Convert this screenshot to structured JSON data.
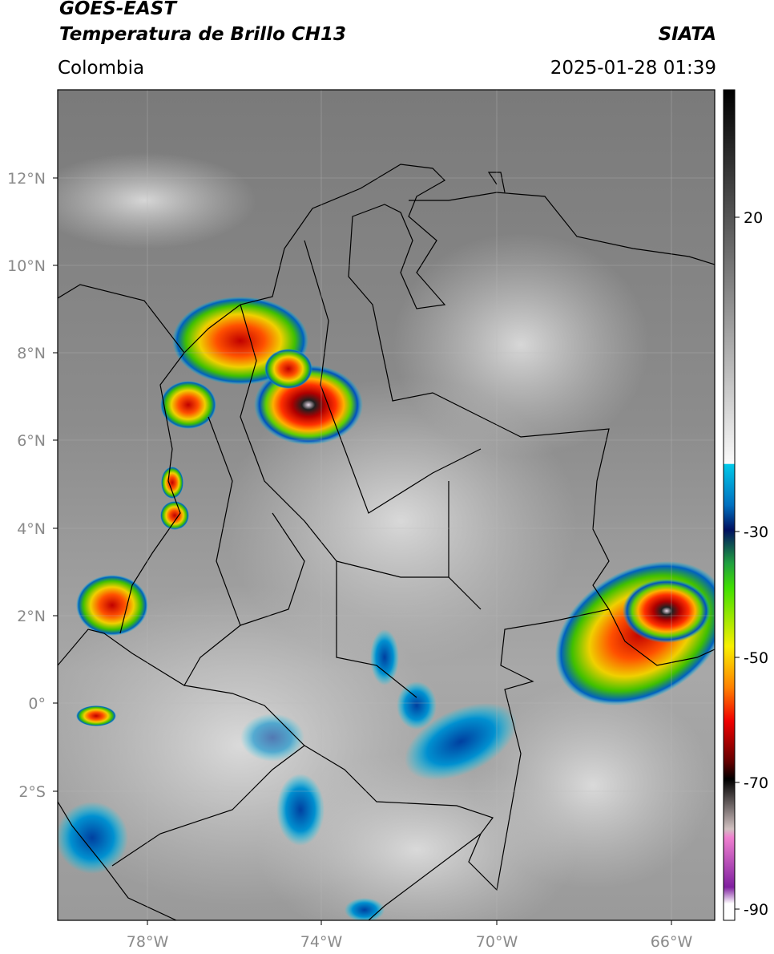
{
  "header": {
    "title_lines": [
      "GOES-EAST",
      "Temperatura de Brillo CH13"
    ],
    "region": "Colombia",
    "agency": "SIATA",
    "datetime": "2025-01-28 01:39"
  },
  "map": {
    "lat_labels": [
      "12°N",
      "10°N",
      "8°N",
      "6°N",
      "4°N",
      "2°N",
      "0°",
      "2°S"
    ],
    "lon_labels": [
      "78°W",
      "74°W",
      "70°W",
      "66°W"
    ]
  },
  "colorbar": {
    "tick_labels": [
      "20",
      "-30",
      "-50",
      "-70",
      "-90"
    ]
  }
}
